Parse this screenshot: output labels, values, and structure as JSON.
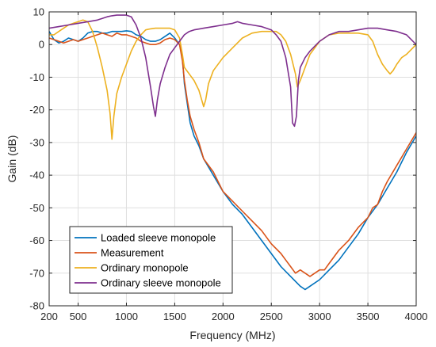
{
  "chart_data": {
    "type": "line",
    "title": "",
    "xlabel": "Frequency (MHz)",
    "ylabel": "Gain (dB)",
    "xlim": [
      200,
      4000
    ],
    "ylim": [
      -80,
      10
    ],
    "xticks": [
      200,
      500,
      1000,
      1500,
      2000,
      2500,
      3000,
      3500,
      4000
    ],
    "yticks": [
      10,
      0,
      -10,
      -20,
      -30,
      -40,
      -50,
      -60,
      -70,
      -80
    ],
    "grid": true,
    "legend_position": "bottom-left",
    "series": [
      {
        "name": "Loaded sleeve monopole",
        "color": "#0072BD",
        "x": [
          200,
          250,
          300,
          350,
          400,
          450,
          500,
          550,
          600,
          650,
          700,
          750,
          800,
          850,
          900,
          950,
          1000,
          1050,
          1100,
          1150,
          1200,
          1250,
          1300,
          1350,
          1400,
          1450,
          1500,
          1550,
          1580,
          1600,
          1630,
          1660,
          1700,
          1750,
          1800,
          1900,
          2000,
          2100,
          2200,
          2300,
          2400,
          2500,
          2600,
          2700,
          2800,
          2850,
          2900,
          3000,
          3100,
          3200,
          3300,
          3400,
          3500,
          3600,
          3700,
          3800,
          3900,
          4000
        ],
        "values": [
          4,
          1.5,
          0.5,
          1,
          2,
          1.5,
          1,
          2,
          3.5,
          4,
          4,
          3.5,
          3.5,
          4,
          4,
          4,
          4.2,
          4,
          3,
          2.5,
          1.5,
          1,
          1,
          1.5,
          2.5,
          3.5,
          2,
          0,
          -4,
          -12,
          -18,
          -24,
          -28,
          -31,
          -35,
          -40,
          -45,
          -49,
          -52,
          -56,
          -60,
          -64,
          -68,
          -71,
          -74,
          -75,
          -74,
          -72,
          -69,
          -66,
          -62,
          -58,
          -53,
          -49,
          -44,
          -39,
          -33,
          -28
        ]
      },
      {
        "name": "Measurement",
        "color": "#D95319",
        "x": [
          200,
          250,
          300,
          350,
          400,
          450,
          500,
          550,
          600,
          650,
          700,
          750,
          800,
          850,
          900,
          950,
          1000,
          1050,
          1100,
          1150,
          1200,
          1250,
          1300,
          1350,
          1400,
          1450,
          1500,
          1550,
          1580,
          1600,
          1630,
          1660,
          1700,
          1750,
          1800,
          1900,
          2000,
          2100,
          2200,
          2300,
          2400,
          2500,
          2600,
          2650,
          2700,
          2750,
          2800,
          2850,
          2900,
          2950,
          3000,
          3050,
          3100,
          3200,
          3300,
          3400,
          3500,
          3550,
          3600,
          3650,
          3700,
          3800,
          3900,
          4000
        ],
        "values": [
          2,
          1.5,
          1,
          0.5,
          1,
          1.5,
          1,
          1.5,
          2,
          2.5,
          3,
          3.5,
          3,
          2.5,
          3.5,
          3,
          3,
          2.5,
          2,
          1,
          0.5,
          0,
          0,
          0.5,
          1.5,
          2,
          1.5,
          0,
          -5,
          -11,
          -17,
          -22,
          -26,
          -30,
          -35,
          -39,
          -45,
          -48,
          -51,
          -54,
          -57,
          -61,
          -64,
          -66,
          -68,
          -70,
          -69,
          -70,
          -71,
          -70,
          -69,
          -69,
          -67,
          -63,
          -60,
          -56,
          -53,
          -50,
          -49,
          -45,
          -42,
          -37,
          -32,
          -27
        ]
      },
      {
        "name": "Ordinary monopole",
        "color": "#EDB120",
        "x": [
          200,
          250,
          300,
          350,
          400,
          450,
          500,
          550,
          600,
          650,
          700,
          750,
          800,
          830,
          850,
          870,
          900,
          950,
          1000,
          1050,
          1100,
          1150,
          1200,
          1250,
          1300,
          1350,
          1400,
          1450,
          1500,
          1550,
          1580,
          1600,
          1650,
          1700,
          1750,
          1780,
          1800,
          1820,
          1850,
          1900,
          2000,
          2100,
          2200,
          2300,
          2400,
          2500,
          2550,
          2600,
          2650,
          2700,
          2750,
          2770,
          2800,
          2850,
          2900,
          3000,
          3100,
          3200,
          3300,
          3400,
          3500,
          3550,
          3600,
          3650,
          3700,
          3730,
          3760,
          3800,
          3850,
          3900,
          4000
        ],
        "values": [
          3,
          3,
          4,
          5,
          6,
          6.5,
          7,
          7.5,
          7,
          4,
          -1,
          -7,
          -14,
          -21,
          -29,
          -22,
          -15,
          -10,
          -6,
          -2,
          1,
          3,
          4.5,
          4.8,
          5,
          5,
          5,
          5,
          4.5,
          2,
          -3,
          -7,
          -9,
          -11,
          -14,
          -17,
          -19,
          -17,
          -12,
          -8,
          -4,
          -1,
          2,
          3.5,
          4,
          4,
          4,
          3,
          1,
          -3,
          -9,
          -13,
          -11,
          -7,
          -3,
          1,
          3,
          3.5,
          3.5,
          3.5,
          3,
          1,
          -3,
          -6,
          -8,
          -9,
          -8,
          -6,
          -4,
          -3,
          0
        ]
      },
      {
        "name": "Ordinary sleeve monopole",
        "color": "#7E2F8E",
        "x": [
          200,
          300,
          400,
          500,
          600,
          700,
          800,
          850,
          900,
          950,
          1000,
          1050,
          1100,
          1150,
          1200,
          1250,
          1280,
          1300,
          1320,
          1350,
          1400,
          1450,
          1500,
          1550,
          1600,
          1650,
          1700,
          1800,
          1900,
          2000,
          2100,
          2150,
          2200,
          2300,
          2400,
          2500,
          2550,
          2600,
          2650,
          2700,
          2720,
          2740,
          2760,
          2780,
          2800,
          2850,
          2900,
          3000,
          3100,
          3200,
          3300,
          3400,
          3500,
          3600,
          3700,
          3800,
          3900,
          4000
        ],
        "values": [
          5,
          5.5,
          6,
          6.5,
          7,
          7.5,
          8.5,
          8.8,
          9,
          9,
          9,
          8.5,
          6,
          2,
          -4,
          -13,
          -19,
          -22,
          -17,
          -12,
          -7,
          -3,
          -1,
          1,
          3,
          4,
          4.5,
          5,
          5.5,
          6,
          6.5,
          7,
          6.5,
          6,
          5.5,
          4.5,
          3,
          1,
          -4,
          -13,
          -24,
          -25,
          -22,
          -11,
          -7,
          -4,
          -2,
          1,
          3,
          4,
          4,
          4.5,
          5,
          5,
          4.5,
          4,
          3,
          0
        ]
      }
    ]
  }
}
